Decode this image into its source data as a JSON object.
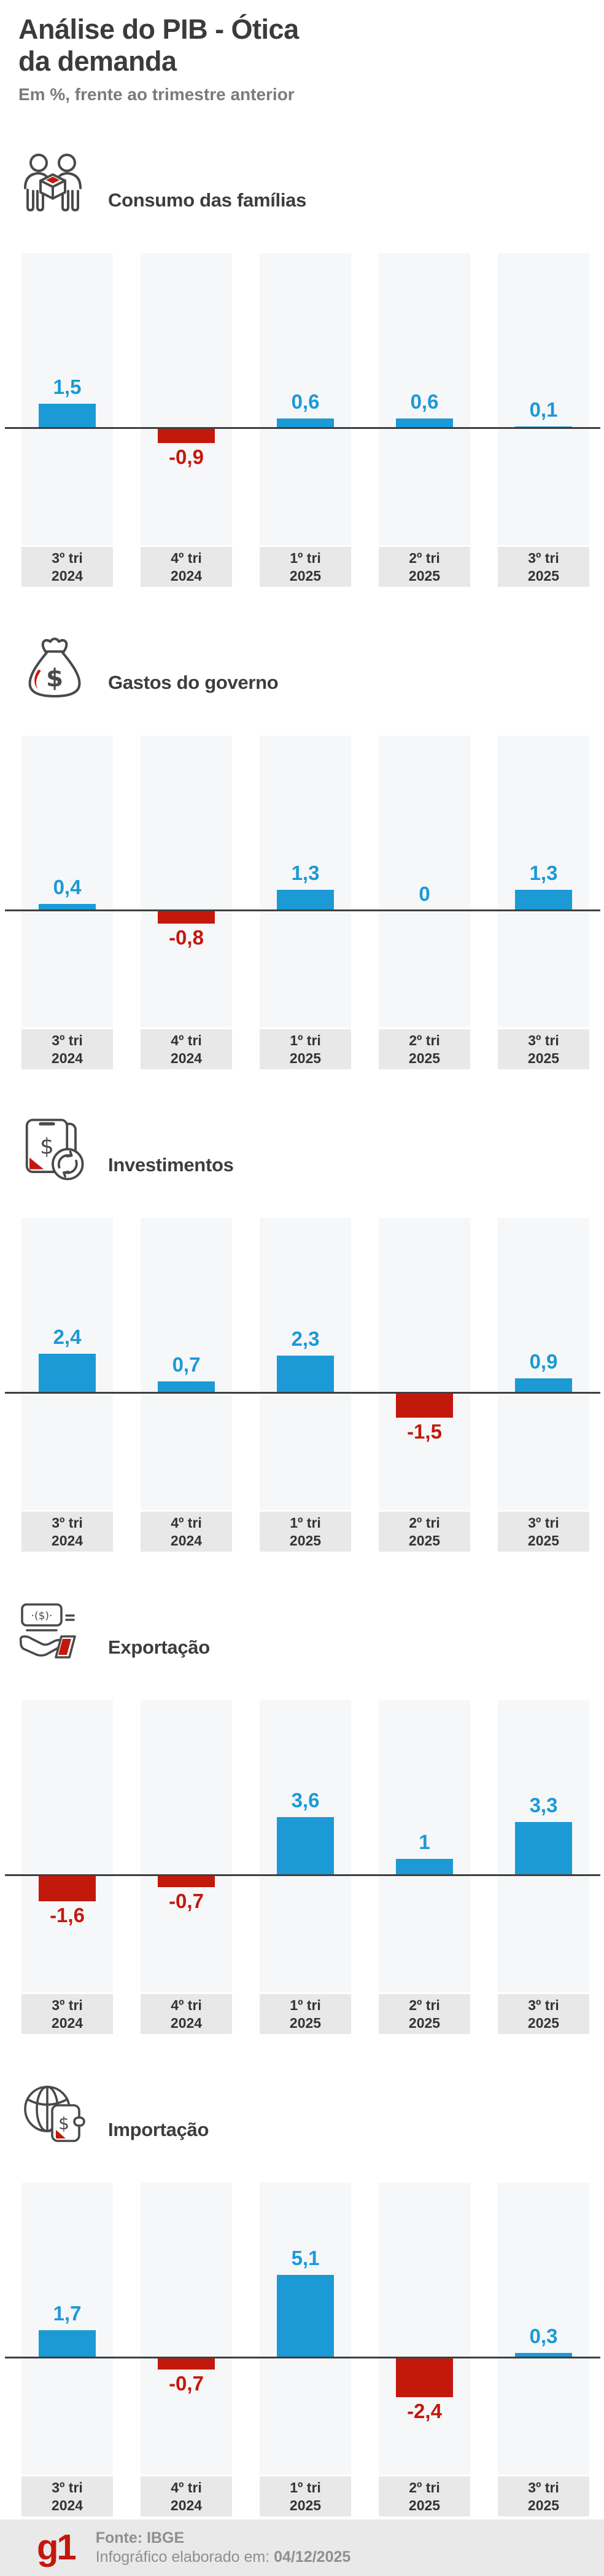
{
  "header": {
    "title_line1": "Análise do PIB - Ótica",
    "title_line2": "da demanda",
    "subtitle": "Em %, frente ao trimestre anterior"
  },
  "colors": {
    "positive_bar": "#1b9ad6",
    "negative_bar": "#c3190d",
    "axis": "#3f3f3f",
    "column_background": "#f6f7f9",
    "tick_background": "#e8e8e8",
    "title_text": "#3b3b3b",
    "logo_red": "#c4170c"
  },
  "chart_data": [
    {
      "type": "bar",
      "title": "Consumo das famílias",
      "icon": "people-carrying-box-icon",
      "categories": [
        "3º tri 2024",
        "4º tri 2024",
        "1º tri 2025",
        "2º tri 2025",
        "3º tri 2025"
      ],
      "values": [
        1.5,
        -0.9,
        0.6,
        0.6,
        0.1
      ],
      "labels": [
        "1,5",
        "-0,9",
        "0,6",
        "0,6",
        "0,1"
      ],
      "xlabel": "",
      "ylabel": "",
      "ylim": [
        -7,
        11
      ],
      "grid": false,
      "legend": false
    },
    {
      "type": "bar",
      "title": "Gastos do governo",
      "icon": "money-bag-icon",
      "categories": [
        "3º tri 2024",
        "4º tri 2024",
        "1º tri 2025",
        "2º tri 2025",
        "3º tri 2025"
      ],
      "values": [
        0.4,
        -0.8,
        1.3,
        0,
        1.3
      ],
      "labels": [
        "0,4",
        "-0,8",
        "1,3",
        "0",
        "1,3"
      ],
      "xlabel": "",
      "ylabel": "",
      "ylim": [
        -7,
        11
      ],
      "grid": false,
      "legend": false
    },
    {
      "type": "bar",
      "title": "Investimentos",
      "icon": "investment-cycle-icon",
      "categories": [
        "3º tri 2024",
        "4º tri 2024",
        "1º tri 2025",
        "2º tri 2025",
        "3º tri 2025"
      ],
      "values": [
        2.4,
        0.7,
        2.3,
        -1.5,
        0.9
      ],
      "labels": [
        "2,4",
        "0,7",
        "2,3",
        "-1,5",
        "0,9"
      ],
      "xlabel": "",
      "ylabel": "",
      "ylim": [
        -7,
        11
      ],
      "grid": false,
      "legend": false
    },
    {
      "type": "bar",
      "title": "Exportação",
      "icon": "hand-banknote-icon",
      "categories": [
        "3º tri 2024",
        "4º tri 2024",
        "1º tri 2025",
        "2º tri 2025",
        "3º tri 2025"
      ],
      "values": [
        -1.6,
        -0.7,
        3.6,
        1,
        3.3
      ],
      "labels": [
        "-1,6",
        "-0,7",
        "3,6",
        "1",
        "3,3"
      ],
      "xlabel": "",
      "ylabel": "",
      "ylim": [
        -7,
        11
      ],
      "grid": false,
      "legend": false
    },
    {
      "type": "bar",
      "title": "Importação",
      "icon": "globe-wallet-icon",
      "categories": [
        "3º tri 2024",
        "4º tri 2024",
        "1º tri 2025",
        "2º tri 2025",
        "3º tri 2025"
      ],
      "values": [
        1.7,
        -0.7,
        5.1,
        -2.4,
        0.3
      ],
      "labels": [
        "1,7",
        "-0,7",
        "5,1",
        "-2,4",
        "0,3"
      ],
      "xlabel": "",
      "ylabel": "",
      "ylim": [
        -7,
        11
      ],
      "grid": false,
      "legend": false
    }
  ],
  "footer": {
    "logo": "g1",
    "source_label": "Fonte: IBGE",
    "elaborated_label": "Infográfico elaborado em:",
    "elaborated_date": "04/12/2025"
  }
}
